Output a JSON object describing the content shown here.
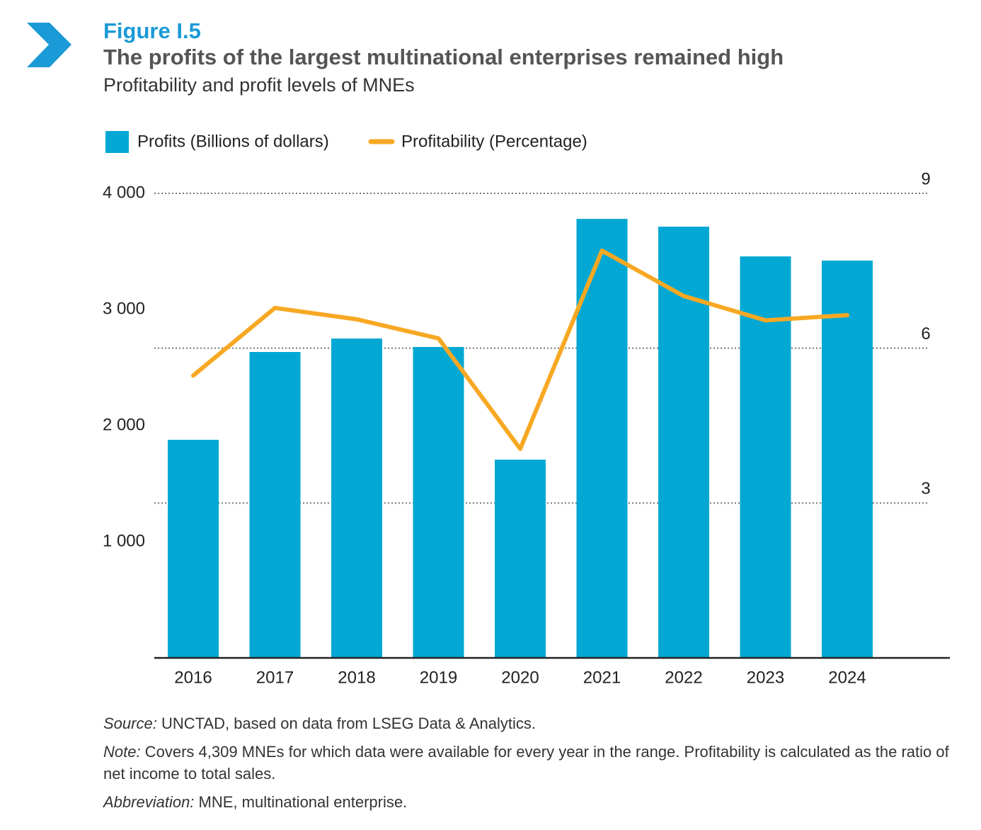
{
  "chart_data": {
    "type": "bar_line",
    "figure_label": "Figure I.5",
    "title": "The profits of the largest multinational enterprises remained high",
    "subtitle": "Profitability and profit levels of MNEs",
    "categories": [
      "2016",
      "2017",
      "2018",
      "2019",
      "2020",
      "2021",
      "2022",
      "2023",
      "2024"
    ],
    "series": [
      {
        "name": "Profits (Billions of dollars)",
        "type": "bar",
        "color": "#02a8d3",
        "axis": "y",
        "values": [
          1878,
          2634,
          2750,
          2677,
          1707,
          3780,
          3713,
          3457,
          3421
        ]
      },
      {
        "name": "Profitability (Percentage)",
        "type": "line",
        "color": "#f7a823",
        "axis": "y2",
        "values": [
          5.47,
          6.78,
          6.56,
          6.19,
          4.05,
          7.89,
          7.01,
          6.54,
          6.64
        ]
      }
    ],
    "ylim": [
      0,
      4000
    ],
    "yticks": [
      {
        "value": 1000,
        "label": "1 000"
      },
      {
        "value": 2000,
        "label": "2 000"
      },
      {
        "value": 3000,
        "label": "3 000"
      },
      {
        "value": 4000,
        "label": "4 000"
      }
    ],
    "y2lim": [
      0,
      9
    ],
    "y2ticks": [
      3,
      6,
      9
    ],
    "grid": "y2",
    "legend": "top"
  },
  "notes": [
    {
      "prefix": "Source:",
      "text": " UNCTAD, based on data from LSEG Data & Analytics."
    },
    {
      "prefix": "Note:",
      "text": " Covers 4,309 MNEs for which data were available for every year in the range. Profitability is calculated as the ratio of net income to total sales."
    },
    {
      "prefix": "Abbreviation:",
      "text": " MNE, multinational enterprise."
    }
  ]
}
